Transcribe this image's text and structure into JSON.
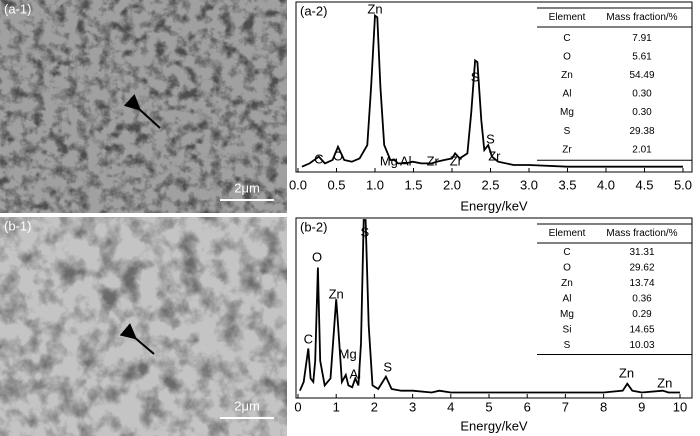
{
  "panels": [
    {
      "label": "(a-1)",
      "scale_bar": "2μm"
    },
    {
      "label": "(b-1)",
      "scale_bar": "2μm"
    }
  ],
  "chart_data": [
    {
      "type": "line",
      "panel_label": "(a-2)",
      "x_label": "Energy/keV",
      "xlim": [
        0,
        5
      ],
      "ylim": [
        0,
        100
      ],
      "xticks": [
        {
          "value": 0,
          "label": "0.0"
        },
        0.5,
        {
          "value": 1,
          "label": "1.0"
        },
        1.5,
        {
          "value": 2,
          "label": "2.0"
        },
        2.5,
        {
          "value": 3,
          "label": "3.0"
        },
        3.5,
        {
          "value": 4,
          "label": "4.0"
        },
        4.5,
        {
          "value": 5,
          "label": "5.0"
        }
      ],
      "x": [
        0.05,
        0.15,
        0.27,
        0.35,
        0.45,
        0.52,
        0.6,
        0.7,
        0.8,
        0.9,
        0.95,
        1.0,
        1.03,
        1.07,
        1.12,
        1.2,
        1.25,
        1.3,
        1.4,
        1.49,
        1.6,
        1.74,
        1.8,
        1.9,
        2.0,
        2.04,
        2.1,
        2.2,
        2.25,
        2.3,
        2.33,
        2.38,
        2.42,
        2.47,
        2.52,
        2.6,
        2.8,
        3.0,
        3.5,
        4.0,
        4.5,
        5.0
      ],
      "values": [
        2,
        4,
        8,
        4,
        6,
        14,
        6,
        5,
        7,
        15,
        50,
        93,
        92,
        50,
        15,
        6,
        6,
        4,
        4,
        5,
        4,
        4,
        5,
        6,
        7,
        10,
        7,
        10,
        35,
        66,
        65,
        30,
        12,
        15,
        8,
        5,
        3,
        3,
        2,
        2,
        2,
        2
      ],
      "color": "#000000",
      "peak_labels": [
        "C",
        "O",
        "Zn",
        "Mg",
        "Al",
        "Zr",
        "Zr",
        "S",
        "S",
        "Zr"
      ],
      "table": {
        "header": [
          "Element",
          "Mass fraction/%"
        ],
        "rows": [
          [
            "C",
            "7.91"
          ],
          [
            "O",
            "5.61"
          ],
          [
            "Zn",
            "54.49"
          ],
          [
            "Al",
            "0.30"
          ],
          [
            "Mg",
            "0.30"
          ],
          [
            "S",
            "29.38"
          ],
          [
            "Zr",
            "2.01"
          ]
        ]
      }
    },
    {
      "type": "line",
      "panel_label": "(b-2)",
      "x_label": "Energy/keV",
      "xlim": [
        0,
        10
      ],
      "ylim": [
        0,
        100
      ],
      "xticks": [
        0,
        1,
        2,
        3,
        4,
        5,
        6,
        7,
        8,
        9,
        10
      ],
      "x": [
        0.05,
        0.15,
        0.27,
        0.33,
        0.4,
        0.45,
        0.52,
        0.58,
        0.7,
        0.85,
        0.95,
        1.0,
        1.05,
        1.15,
        1.25,
        1.32,
        1.42,
        1.5,
        1.58,
        1.65,
        1.72,
        1.77,
        1.85,
        1.95,
        2.1,
        2.3,
        2.45,
        2.7,
        3.0,
        3.5,
        3.7,
        4.0,
        5.0,
        6.0,
        7.0,
        8.0,
        8.5,
        8.62,
        8.75,
        9.0,
        9.55,
        9.7,
        10.0
      ],
      "values": [
        3,
        8,
        27,
        10,
        8,
        20,
        73,
        20,
        6,
        10,
        40,
        55,
        40,
        8,
        12,
        6,
        5,
        10,
        6,
        30,
        100,
        100,
        40,
        6,
        4,
        11,
        4,
        3,
        3,
        2,
        3,
        2,
        2,
        2,
        2,
        2,
        3,
        7,
        3,
        2,
        3,
        2,
        2
      ],
      "color": "#000000",
      "peak_labels": [
        "C",
        "O",
        "Zn",
        "Mg",
        "Al",
        "S",
        "S",
        "Zn",
        "Zn"
      ],
      "table": {
        "header": [
          "Element",
          "Mass fraction/%"
        ],
        "rows": [
          [
            "C",
            "31.31"
          ],
          [
            "O",
            "29.62"
          ],
          [
            "Zn",
            "13.74"
          ],
          [
            "Al",
            "0.36"
          ],
          [
            "Mg",
            "0.29"
          ],
          [
            "Si",
            "14.65"
          ],
          [
            "S",
            "10.03"
          ]
        ]
      }
    }
  ]
}
